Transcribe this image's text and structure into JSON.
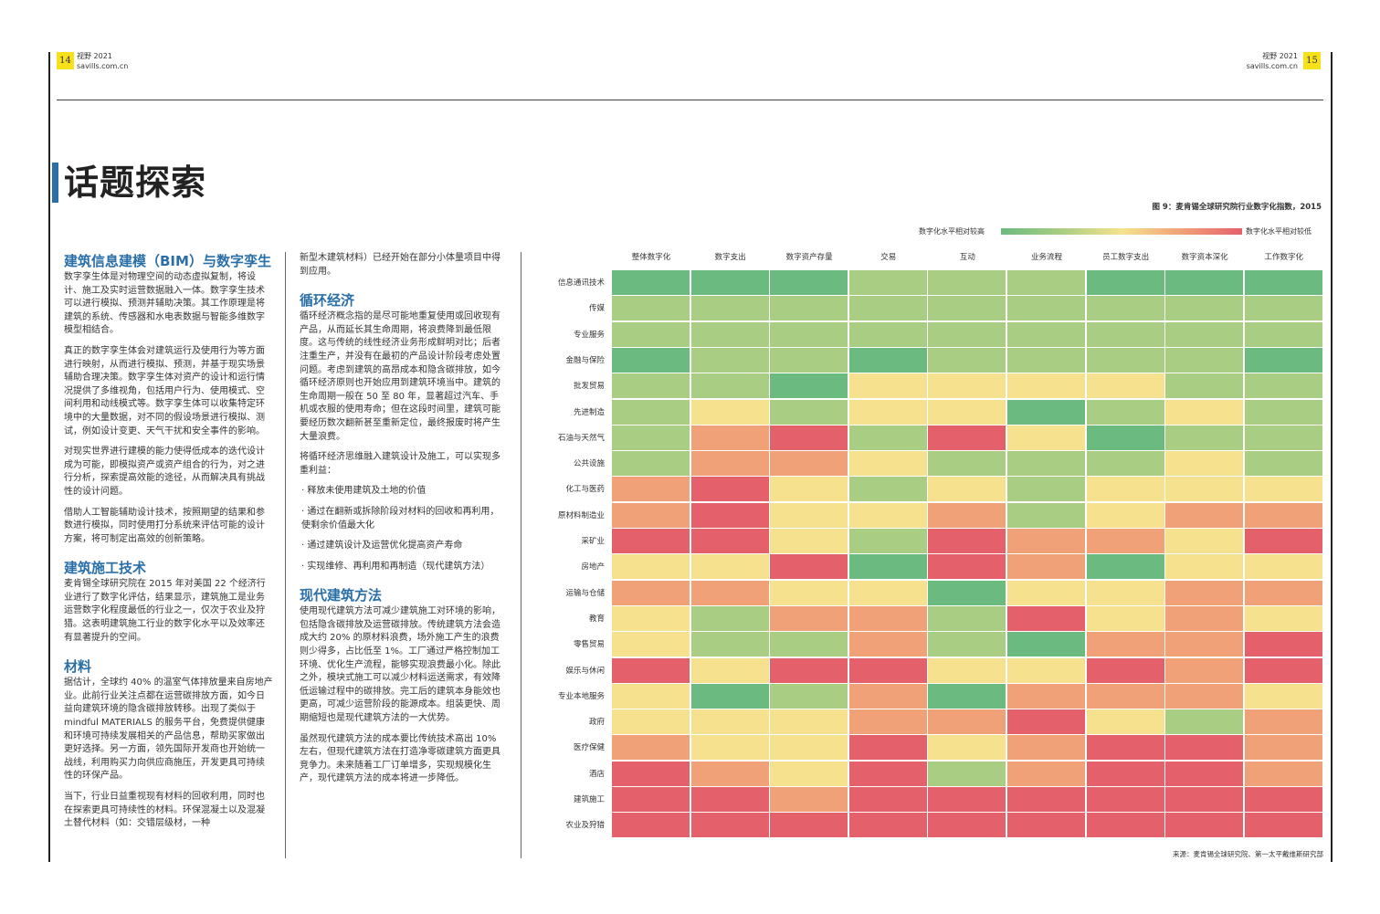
{
  "header": {
    "left_page": "14",
    "right_page": "15",
    "left_pub": "视野 2021",
    "left_site": "savills.com.cn",
    "right_pub": "视野 2021",
    "right_site": "savills.com.cn"
  },
  "title": "话题探索",
  "col1": {
    "h1": "建筑信息建模（BIM）与数字孪生",
    "p1": "数字孪生体是对物理空间的动态虚拟复制，将设计、施工及实时运营数据融入一体。数字孪生技术可以进行模拟、预测并辅助决策。其工作原理是将建筑的系统、传感器和水电表数据与智能多维数字模型相结合。",
    "p2": "真正的数字孪生体会对建筑运行及使用行为等方面进行映射，从而进行模拟、预测，并基于现实场景辅助合理决策。数字孪生体对资产的设计和运行情况提供了多维视角，包括用户行为、使用模式、空间利用和动线模式等。数字孪生体可以收集特定环境中的大量数据，对不同的假设场景进行模拟、测试，例如设计变更、天气干扰和安全事件的影响。",
    "p3": "对现实世界进行建模的能力使得低成本的迭代设计成为可能，即模拟资产或资产组合的行为，对之进行分析，探索提高效能的途径，从而解决具有挑战性的设计问题。",
    "p4": "借助人工智能辅助设计技术，按照期望的结果和参数进行模拟，同时使用打分系统来评估可能的设计方案，将可制定出高效的创新策略。",
    "h2": "建筑施工技术",
    "p5": "麦肯锡全球研究院在 2015 年对美国 22 个经济行业进行了数字化评估，结果显示，建筑施工是业务运营数字化程度最低的行业之一，仅次于农业及狩猎。这表明建筑施工行业的数字化水平以及效率还有显著提升的空间。",
    "h3": "材料",
    "p6": "据估计，全球约 40% 的温室气体排放量来自房地产业。此前行业关注点都在运营碳排放方面，如今日益向建筑环境的隐含碳排放转移。出现了类似于 mindful MATERIALS 的服务平台，免费提供健康和环境可持续发展相关的产品信息，帮助买家做出更好选择。另一方面，领先国际开发商也开始统一战线，利用购买力向供应商施压，开发更具可持续性的环保产品。",
    "p7": "当下，行业日益重视现有材料的回收利用，同时也在探索更具可持续性的材料。环保混凝土以及混凝土替代材料（如：交错层级材，一种"
  },
  "col2": {
    "p0": "新型木建筑材料）已经开始在部分小体量项目中得到应用。",
    "h1": "循环经济",
    "p1": "循环经济概念指的是尽可能地重复使用或回收现有产品，从而延长其生命周期，将浪费降到最低限度。这与传统的线性经济业务形成鲜明对比；后者注重生产，并没有在最初的产品设计阶段考虑处置问题。考虑到建筑的高昂成本和隐含碳排放，如今循环经济原则也开始应用到建筑环境当中。建筑的生命周期一般在 50 至 80 年，显著超过汽车、手机或衣服的使用寿命；但在这段时间里，建筑可能要经历数次翻新甚至重新定位，最终报废时将产生大量浪费。",
    "p2": "将循环经济思维融入建筑设计及施工，可以实现多重利益：",
    "b1": "·  释放未使用建筑及土地的价值",
    "b2": "·  通过在翻新或拆除阶段对材料的回收和再利用，使剩余价值最大化",
    "b3": "·  通过建筑设计及运营优化提高资产寿命",
    "b4": "·  实现维修、再利用和再制造（现代建筑方法）",
    "h2": "现代建筑方法",
    "p3": "使用现代建筑方法可减少建筑施工对环境的影响，包括隐含碳排放及运营碳排放。传统建筑方法会造成大约 20% 的原材料浪费，场外施工产生的浪费则少得多，占比低至 1%。工厂通过严格控制加工环境、优化生产流程，能够实现浪费最小化。除此之外，模块式施工可以减少材料运送需求，有效降低运输过程中的碳排放。完工后的建筑本身能效也更高，可减少运营阶段的能源成本。组装更快、周期缩短也是现代建筑方法的一大优势。",
    "p4": "虽然现代建筑方法的成本要比传统技术高出 10% 左右，但现代建筑方法在打造净零碳建筑方面更具竞争力。未来随着工厂订单增多，实现规模化生产，现代建筑方法的成本将进一步降低。"
  },
  "figure": {
    "title": "图 9：麦肯锡全球研究院行业数字化指数，2015",
    "legend_high": "数字化水平相对较高",
    "legend_low": "数字化水平相对较低",
    "source": "来源：麦肯锡全球研究院、第一太平戴维斯研究部"
  },
  "chart_data": {
    "type": "heatmap",
    "title": "图 9：麦肯锡全球研究院行业数字化指数，2015",
    "scale": [
      "数字化水平相对较高",
      "数字化水平相对较低"
    ],
    "level_colors": {
      "1": "#6bbb80",
      "2": "#a9cd83",
      "3": "#f6e28e",
      "4": "#f0a178",
      "5": "#e4606a"
    },
    "columns": [
      "整体数字化",
      "数字支出",
      "数字资产存量",
      "交易",
      "互动",
      "业务流程",
      "员工数字支出",
      "数字资本深化",
      "工作数字化"
    ],
    "rows": [
      "信息通讯技术",
      "传媒",
      "专业服务",
      "金融与保险",
      "批发贸易",
      "先进制造",
      "石油与天然气",
      "公共设施",
      "化工与医药",
      "原材料制造业",
      "采矿业",
      "房地产",
      "运输与仓储",
      "教育",
      "零售贸易",
      "娱乐与休闲",
      "专业本地服务",
      "政府",
      "医疗保健",
      "酒店",
      "建筑施工",
      "农业及狩猎"
    ],
    "values": [
      [
        1,
        1,
        1,
        2,
        2,
        2,
        1,
        1,
        1
      ],
      [
        2,
        2,
        2,
        2,
        2,
        2,
        2,
        2,
        2
      ],
      [
        2,
        2,
        2,
        2,
        2,
        2,
        2,
        2,
        2
      ],
      [
        1,
        2,
        2,
        1,
        2,
        2,
        2,
        2,
        1
      ],
      [
        2,
        2,
        1,
        3,
        3,
        3,
        3,
        2,
        2
      ],
      [
        2,
        3,
        2,
        3,
        3,
        1,
        2,
        3,
        2
      ],
      [
        2,
        4,
        5,
        2,
        5,
        3,
        1,
        2,
        2
      ],
      [
        2,
        4,
        4,
        3,
        2,
        2,
        2,
        3,
        2
      ],
      [
        4,
        5,
        3,
        2,
        3,
        2,
        3,
        3,
        3
      ],
      [
        4,
        5,
        3,
        3,
        4,
        2,
        3,
        4,
        4
      ],
      [
        5,
        5,
        3,
        2,
        5,
        4,
        4,
        3,
        5
      ],
      [
        3,
        3,
        5,
        1,
        5,
        4,
        1,
        3,
        3
      ],
      [
        4,
        4,
        3,
        3,
        1,
        3,
        3,
        4,
        4
      ],
      [
        3,
        2,
        4,
        4,
        2,
        5,
        3,
        4,
        3
      ],
      [
        3,
        2,
        2,
        4,
        2,
        1,
        4,
        4,
        5
      ],
      [
        5,
        3,
        5,
        5,
        3,
        3,
        5,
        4,
        5
      ],
      [
        3,
        1,
        2,
        4,
        1,
        4,
        4,
        4,
        3
      ],
      [
        3,
        3,
        3,
        4,
        4,
        5,
        3,
        2,
        4
      ],
      [
        4,
        3,
        3,
        5,
        3,
        4,
        5,
        5,
        4
      ],
      [
        5,
        4,
        3,
        5,
        2,
        4,
        5,
        5,
        4
      ],
      [
        5,
        5,
        4,
        5,
        5,
        5,
        5,
        5,
        5
      ],
      [
        5,
        5,
        5,
        5,
        5,
        5,
        5,
        5,
        5
      ]
    ]
  }
}
